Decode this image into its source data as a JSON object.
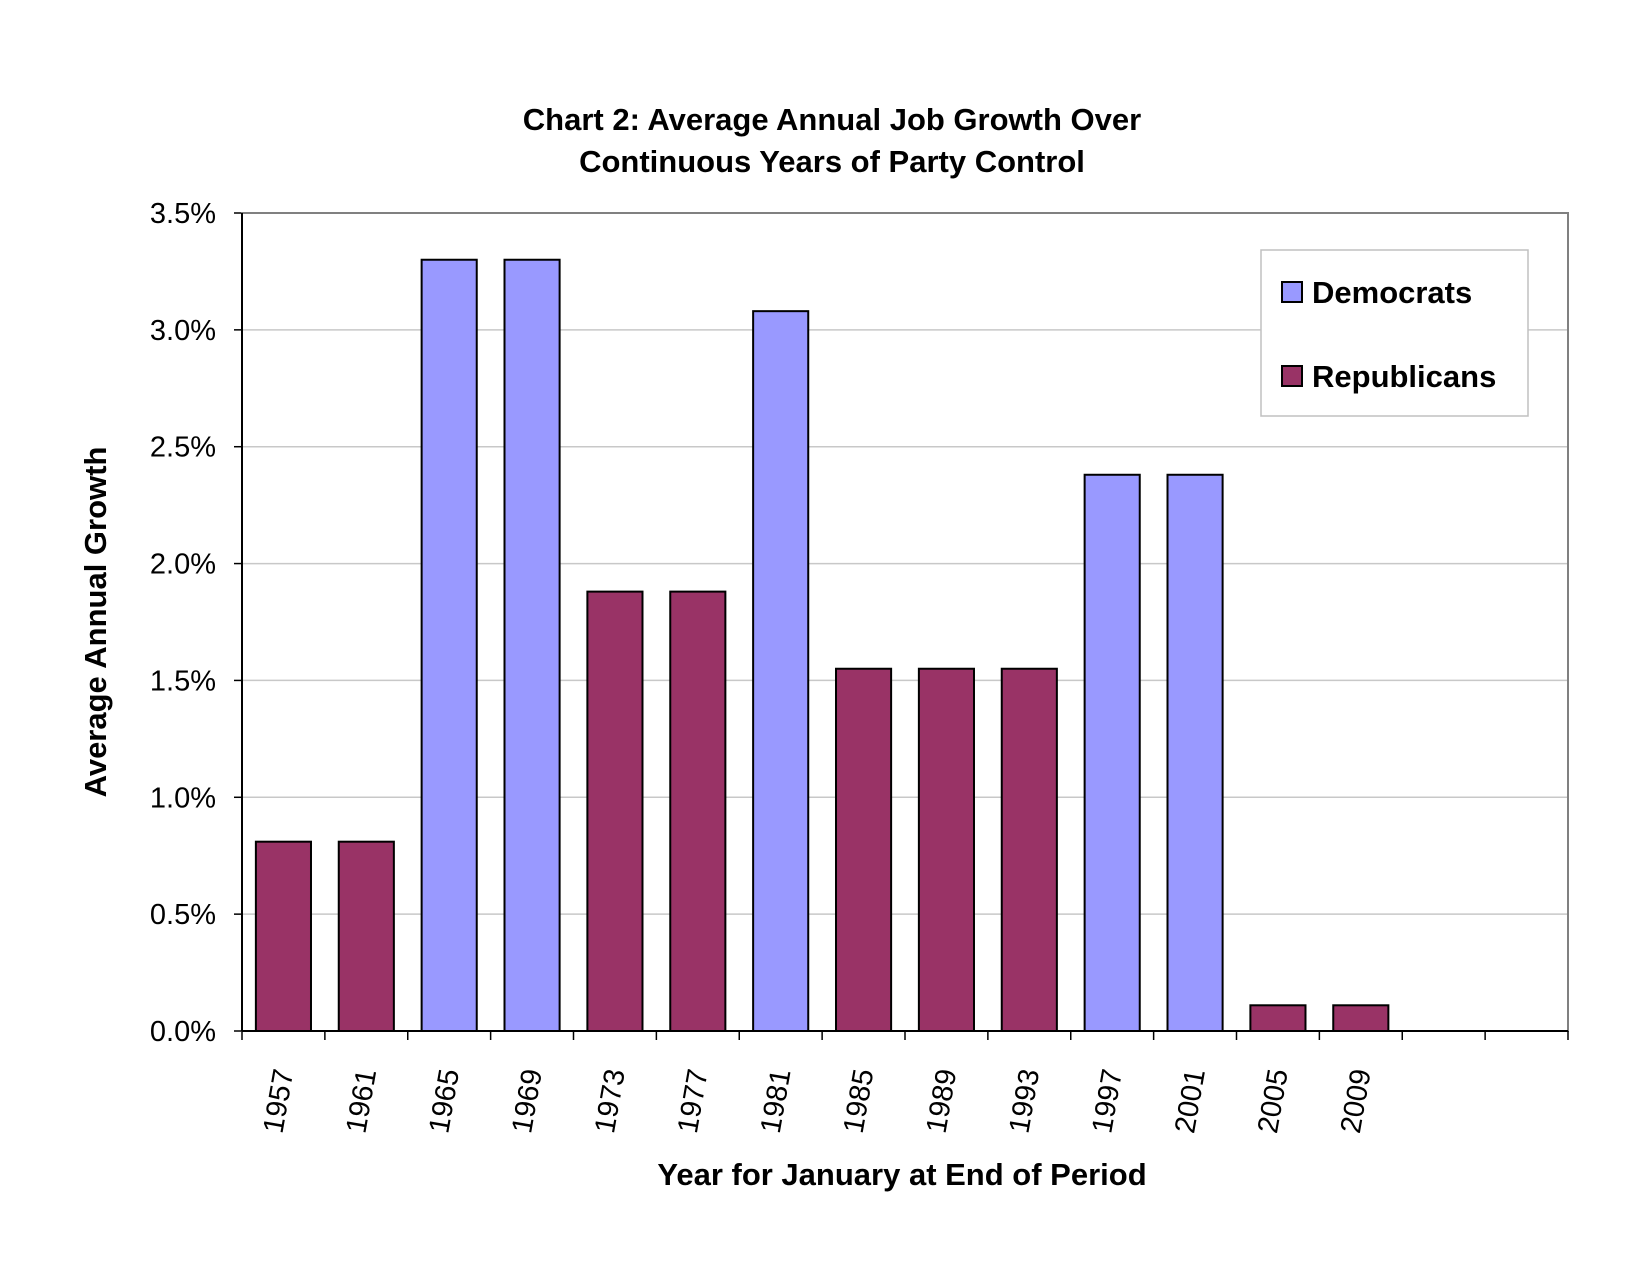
{
  "chart_data": {
    "type": "bar",
    "title_lines": [
      "Chart 2:  Average Annual Job Growth Over",
      "Continuous Years of Party Control"
    ],
    "xlabel": "Year for January at End of Period",
    "ylabel": "Average Annual Growth",
    "ylim": [
      0,
      0.035
    ],
    "yticks": [
      0.0,
      0.005,
      0.01,
      0.015,
      0.02,
      0.025,
      0.03,
      0.035
    ],
    "ytick_labels": [
      "0.0%",
      "0.5%",
      "1.0%",
      "1.5%",
      "2.0%",
      "2.5%",
      "3.0%",
      "3.5%"
    ],
    "grid": true,
    "legend_position": "top-right",
    "categories": [
      "1957",
      "1961",
      "1965",
      "1969",
      "1973",
      "1977",
      "1981",
      "1985",
      "1989",
      "1993",
      "1997",
      "2001",
      "2005",
      "2009",
      "",
      ""
    ],
    "series": [
      {
        "name": "Democrats",
        "color": "#9999ff",
        "values": [
          null,
          null,
          0.033,
          0.033,
          null,
          null,
          0.0308,
          null,
          null,
          null,
          0.0238,
          0.0238,
          null,
          null,
          null,
          null
        ]
      },
      {
        "name": "Republicans",
        "color": "#993366",
        "values": [
          0.0081,
          0.0081,
          null,
          null,
          0.0188,
          0.0188,
          null,
          0.0155,
          0.0155,
          0.0155,
          null,
          null,
          0.0011,
          0.0011,
          null,
          null
        ]
      }
    ]
  }
}
